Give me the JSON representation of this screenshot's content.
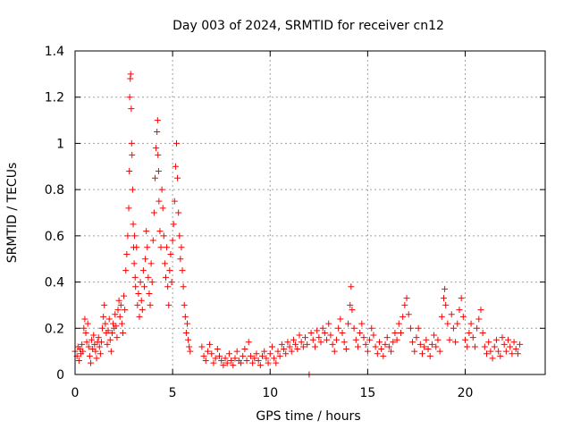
{
  "chart_data": {
    "type": "scatter",
    "title": "Day 003 of 2024, SRMTID for receiver cn12",
    "xlabel": "GPS time / hours",
    "ylabel": "SRMTID / TECUs",
    "xlim": [
      0,
      24.1
    ],
    "ylim": [
      0,
      1.4
    ],
    "x_ticks": [
      0,
      5,
      10,
      15,
      20
    ],
    "x_tick_labels": [
      "0",
      "5",
      "10",
      "15",
      "20"
    ],
    "y_ticks": [
      0,
      0.2,
      0.4,
      0.6,
      0.8,
      1.0,
      1.2,
      1.4
    ],
    "y_tick_labels": [
      "0",
      "0.2",
      "0.4",
      "0.6",
      "0.8",
      "1",
      "1.2",
      "1.4"
    ],
    "grid": true,
    "marker": "plus",
    "color": "#ff0000",
    "series": [
      {
        "name": "SRMTID",
        "points": [
          [
            0.0,
            0.1
          ],
          [
            0.1,
            0.08
          ],
          [
            0.15,
            0.12
          ],
          [
            0.2,
            0.06
          ],
          [
            0.25,
            0.11
          ],
          [
            0.3,
            0.09
          ],
          [
            0.35,
            0.13
          ],
          [
            0.4,
            0.1
          ],
          [
            0.45,
            0.2
          ],
          [
            0.5,
            0.24
          ],
          [
            0.55,
            0.18
          ],
          [
            0.6,
            0.14
          ],
          [
            0.65,
            0.22
          ],
          [
            0.7,
            0.12
          ],
          [
            0.75,
            0.08
          ],
          [
            0.8,
            0.05
          ],
          [
            0.85,
            0.15
          ],
          [
            0.9,
            0.11
          ],
          [
            0.95,
            0.17
          ],
          [
            1.0,
            0.13
          ],
          [
            1.05,
            0.1
          ],
          [
            1.1,
            0.07
          ],
          [
            1.15,
            0.14
          ],
          [
            1.2,
            0.16
          ],
          [
            1.25,
            0.12
          ],
          [
            1.3,
            0.09
          ],
          [
            1.35,
            0.14
          ],
          [
            1.4,
            0.2
          ],
          [
            1.45,
            0.25
          ],
          [
            1.5,
            0.3
          ],
          [
            1.55,
            0.22
          ],
          [
            1.6,
            0.18
          ],
          [
            1.65,
            0.13
          ],
          [
            1.7,
            0.19
          ],
          [
            1.75,
            0.24
          ],
          [
            1.8,
            0.15
          ],
          [
            1.85,
            0.1
          ],
          [
            1.9,
            0.18
          ],
          [
            1.95,
            0.22
          ],
          [
            2.0,
            0.2
          ],
          [
            2.05,
            0.26
          ],
          [
            2.1,
            0.21
          ],
          [
            2.15,
            0.16
          ],
          [
            2.2,
            0.28
          ],
          [
            2.25,
            0.32
          ],
          [
            2.3,
            0.25
          ],
          [
            2.35,
            0.3
          ],
          [
            2.4,
            0.22
          ],
          [
            2.45,
            0.18
          ],
          [
            2.5,
            0.34
          ],
          [
            2.55,
            0.28
          ],
          [
            2.6,
            0.45
          ],
          [
            2.65,
            0.52
          ],
          [
            2.7,
            0.6
          ],
          [
            2.75,
            0.72
          ],
          [
            2.78,
            0.88
          ],
          [
            2.8,
            1.2
          ],
          [
            2.83,
            1.28
          ],
          [
            2.85,
            1.3
          ],
          [
            2.88,
            1.15
          ],
          [
            2.9,
            1.0
          ],
          [
            2.92,
            0.95
          ],
          [
            2.95,
            0.8
          ],
          [
            2.98,
            0.65
          ],
          [
            3.0,
            0.55
          ],
          [
            3.03,
            0.48
          ],
          [
            3.05,
            0.6
          ],
          [
            3.08,
            0.42
          ],
          [
            3.1,
            0.38
          ],
          [
            3.15,
            0.55
          ],
          [
            3.2,
            0.3
          ],
          [
            3.25,
            0.35
          ],
          [
            3.3,
            0.25
          ],
          [
            3.35,
            0.4
          ],
          [
            3.4,
            0.32
          ],
          [
            3.45,
            0.28
          ],
          [
            3.5,
            0.45
          ],
          [
            3.55,
            0.38
          ],
          [
            3.6,
            0.5
          ],
          [
            3.65,
            0.62
          ],
          [
            3.7,
            0.55
          ],
          [
            3.75,
            0.42
          ],
          [
            3.8,
            0.35
          ],
          [
            3.85,
            0.3
          ],
          [
            3.9,
            0.48
          ],
          [
            3.95,
            0.4
          ],
          [
            4.0,
            0.58
          ],
          [
            4.05,
            0.7
          ],
          [
            4.1,
            0.85
          ],
          [
            4.15,
            0.98
          ],
          [
            4.2,
            1.05
          ],
          [
            4.23,
            1.1
          ],
          [
            4.25,
            0.95
          ],
          [
            4.28,
            0.88
          ],
          [
            4.3,
            0.75
          ],
          [
            4.35,
            0.62
          ],
          [
            4.4,
            0.55
          ],
          [
            4.45,
            0.8
          ],
          [
            4.5,
            0.72
          ],
          [
            4.55,
            0.6
          ],
          [
            4.6,
            0.48
          ],
          [
            4.65,
            0.42
          ],
          [
            4.7,
            0.55
          ],
          [
            4.75,
            0.38
          ],
          [
            4.8,
            0.3
          ],
          [
            4.85,
            0.45
          ],
          [
            4.9,
            0.52
          ],
          [
            4.95,
            0.4
          ],
          [
            5.0,
            0.58
          ],
          [
            5.05,
            0.65
          ],
          [
            5.1,
            0.75
          ],
          [
            5.15,
            0.9
          ],
          [
            5.2,
            1.0
          ],
          [
            5.25,
            0.85
          ],
          [
            5.3,
            0.7
          ],
          [
            5.35,
            0.6
          ],
          [
            5.4,
            0.5
          ],
          [
            5.45,
            0.55
          ],
          [
            5.5,
            0.45
          ],
          [
            5.55,
            0.38
          ],
          [
            5.6,
            0.3
          ],
          [
            5.65,
            0.25
          ],
          [
            5.7,
            0.18
          ],
          [
            5.75,
            0.22
          ],
          [
            5.8,
            0.15
          ],
          [
            5.85,
            0.12
          ],
          [
            5.9,
            0.1
          ],
          [
            6.5,
            0.12
          ],
          [
            6.6,
            0.08
          ],
          [
            6.7,
            0.06
          ],
          [
            6.8,
            0.1
          ],
          [
            6.9,
            0.13
          ],
          [
            7.0,
            0.09
          ],
          [
            7.1,
            0.05
          ],
          [
            7.2,
            0.07
          ],
          [
            7.3,
            0.11
          ],
          [
            7.4,
            0.08
          ],
          [
            7.5,
            0.06
          ],
          [
            7.6,
            0.04
          ],
          [
            7.7,
            0.07
          ],
          [
            7.8,
            0.05
          ],
          [
            7.9,
            0.09
          ],
          [
            8.0,
            0.06
          ],
          [
            8.1,
            0.04
          ],
          [
            8.2,
            0.07
          ],
          [
            8.3,
            0.1
          ],
          [
            8.4,
            0.06
          ],
          [
            8.5,
            0.05
          ],
          [
            8.6,
            0.08
          ],
          [
            8.7,
            0.11
          ],
          [
            8.8,
            0.06
          ],
          [
            8.9,
            0.14
          ],
          [
            9.0,
            0.08
          ],
          [
            9.1,
            0.05
          ],
          [
            9.2,
            0.07
          ],
          [
            9.3,
            0.09
          ],
          [
            9.4,
            0.06
          ],
          [
            9.5,
            0.04
          ],
          [
            9.6,
            0.08
          ],
          [
            9.7,
            0.1
          ],
          [
            9.8,
            0.07
          ],
          [
            9.9,
            0.05
          ],
          [
            10.0,
            0.09
          ],
          [
            10.1,
            0.12
          ],
          [
            10.2,
            0.07
          ],
          [
            10.3,
            0.05
          ],
          [
            10.4,
            0.1
          ],
          [
            10.5,
            0.08
          ],
          [
            10.6,
            0.13
          ],
          [
            10.7,
            0.11
          ],
          [
            10.8,
            0.09
          ],
          [
            10.9,
            0.14
          ],
          [
            11.0,
            0.12
          ],
          [
            11.1,
            0.1
          ],
          [
            11.2,
            0.15
          ],
          [
            11.3,
            0.13
          ],
          [
            11.4,
            0.11
          ],
          [
            11.5,
            0.17
          ],
          [
            11.6,
            0.14
          ],
          [
            11.7,
            0.12
          ],
          [
            11.8,
            0.16
          ],
          [
            11.9,
            0.13
          ],
          [
            12.0,
            0.0
          ],
          [
            12.1,
            0.18
          ],
          [
            12.2,
            0.15
          ],
          [
            12.3,
            0.12
          ],
          [
            12.4,
            0.19
          ],
          [
            12.5,
            0.16
          ],
          [
            12.6,
            0.14
          ],
          [
            12.7,
            0.2
          ],
          [
            12.8,
            0.18
          ],
          [
            12.9,
            0.15
          ],
          [
            13.0,
            0.22
          ],
          [
            13.1,
            0.17
          ],
          [
            13.2,
            0.13
          ],
          [
            13.3,
            0.1
          ],
          [
            13.4,
            0.15
          ],
          [
            13.5,
            0.2
          ],
          [
            13.6,
            0.24
          ],
          [
            13.7,
            0.18
          ],
          [
            13.8,
            0.14
          ],
          [
            13.9,
            0.11
          ],
          [
            14.0,
            0.22
          ],
          [
            14.1,
            0.3
          ],
          [
            14.15,
            0.38
          ],
          [
            14.2,
            0.28
          ],
          [
            14.3,
            0.2
          ],
          [
            14.4,
            0.15
          ],
          [
            14.5,
            0.12
          ],
          [
            14.6,
            0.18
          ],
          [
            14.7,
            0.22
          ],
          [
            14.8,
            0.16
          ],
          [
            14.9,
            0.13
          ],
          [
            15.0,
            0.1
          ],
          [
            15.1,
            0.15
          ],
          [
            15.2,
            0.2
          ],
          [
            15.3,
            0.17
          ],
          [
            15.4,
            0.12
          ],
          [
            15.5,
            0.09
          ],
          [
            15.6,
            0.14
          ],
          [
            15.7,
            0.11
          ],
          [
            15.8,
            0.08
          ],
          [
            15.9,
            0.13
          ],
          [
            16.0,
            0.16
          ],
          [
            16.1,
            0.12
          ],
          [
            16.2,
            0.1
          ],
          [
            16.3,
            0.14
          ],
          [
            16.4,
            0.18
          ],
          [
            16.5,
            0.15
          ],
          [
            16.6,
            0.22
          ],
          [
            16.7,
            0.18
          ],
          [
            16.8,
            0.25
          ],
          [
            16.9,
            0.3
          ],
          [
            17.0,
            0.33
          ],
          [
            17.1,
            0.26
          ],
          [
            17.2,
            0.2
          ],
          [
            17.3,
            0.14
          ],
          [
            17.4,
            0.1
          ],
          [
            17.5,
            0.16
          ],
          [
            17.6,
            0.2
          ],
          [
            17.7,
            0.13
          ],
          [
            17.8,
            0.09
          ],
          [
            17.9,
            0.12
          ],
          [
            18.0,
            0.15
          ],
          [
            18.1,
            0.11
          ],
          [
            18.2,
            0.08
          ],
          [
            18.3,
            0.13
          ],
          [
            18.4,
            0.17
          ],
          [
            18.5,
            0.12
          ],
          [
            18.6,
            0.15
          ],
          [
            18.7,
            0.1
          ],
          [
            18.8,
            0.25
          ],
          [
            18.9,
            0.33
          ],
          [
            18.95,
            0.37
          ],
          [
            19.0,
            0.3
          ],
          [
            19.1,
            0.22
          ],
          [
            19.2,
            0.15
          ],
          [
            19.3,
            0.26
          ],
          [
            19.4,
            0.2
          ],
          [
            19.5,
            0.14
          ],
          [
            19.6,
            0.22
          ],
          [
            19.7,
            0.28
          ],
          [
            19.8,
            0.33
          ],
          [
            19.9,
            0.25
          ],
          [
            20.0,
            0.15
          ],
          [
            20.1,
            0.12
          ],
          [
            20.2,
            0.18
          ],
          [
            20.3,
            0.22
          ],
          [
            20.4,
            0.16
          ],
          [
            20.5,
            0.12
          ],
          [
            20.6,
            0.2
          ],
          [
            20.7,
            0.24
          ],
          [
            20.8,
            0.28
          ],
          [
            20.9,
            0.18
          ],
          [
            21.0,
            0.12
          ],
          [
            21.1,
            0.09
          ],
          [
            21.2,
            0.14
          ],
          [
            21.3,
            0.1
          ],
          [
            21.4,
            0.07
          ],
          [
            21.5,
            0.12
          ],
          [
            21.6,
            0.15
          ],
          [
            21.7,
            0.1
          ],
          [
            21.8,
            0.08
          ],
          [
            21.9,
            0.16
          ],
          [
            22.0,
            0.13
          ],
          [
            22.1,
            0.1
          ],
          [
            22.2,
            0.15
          ],
          [
            22.3,
            0.12
          ],
          [
            22.4,
            0.09
          ],
          [
            22.5,
            0.14
          ],
          [
            22.6,
            0.11
          ],
          [
            22.7,
            0.09
          ],
          [
            22.8,
            0.13
          ]
        ]
      }
    ]
  },
  "colors": {
    "marker": "#ff0000",
    "grid": "#a0a0a0",
    "axis": "#000000",
    "background": "#ffffff"
  }
}
